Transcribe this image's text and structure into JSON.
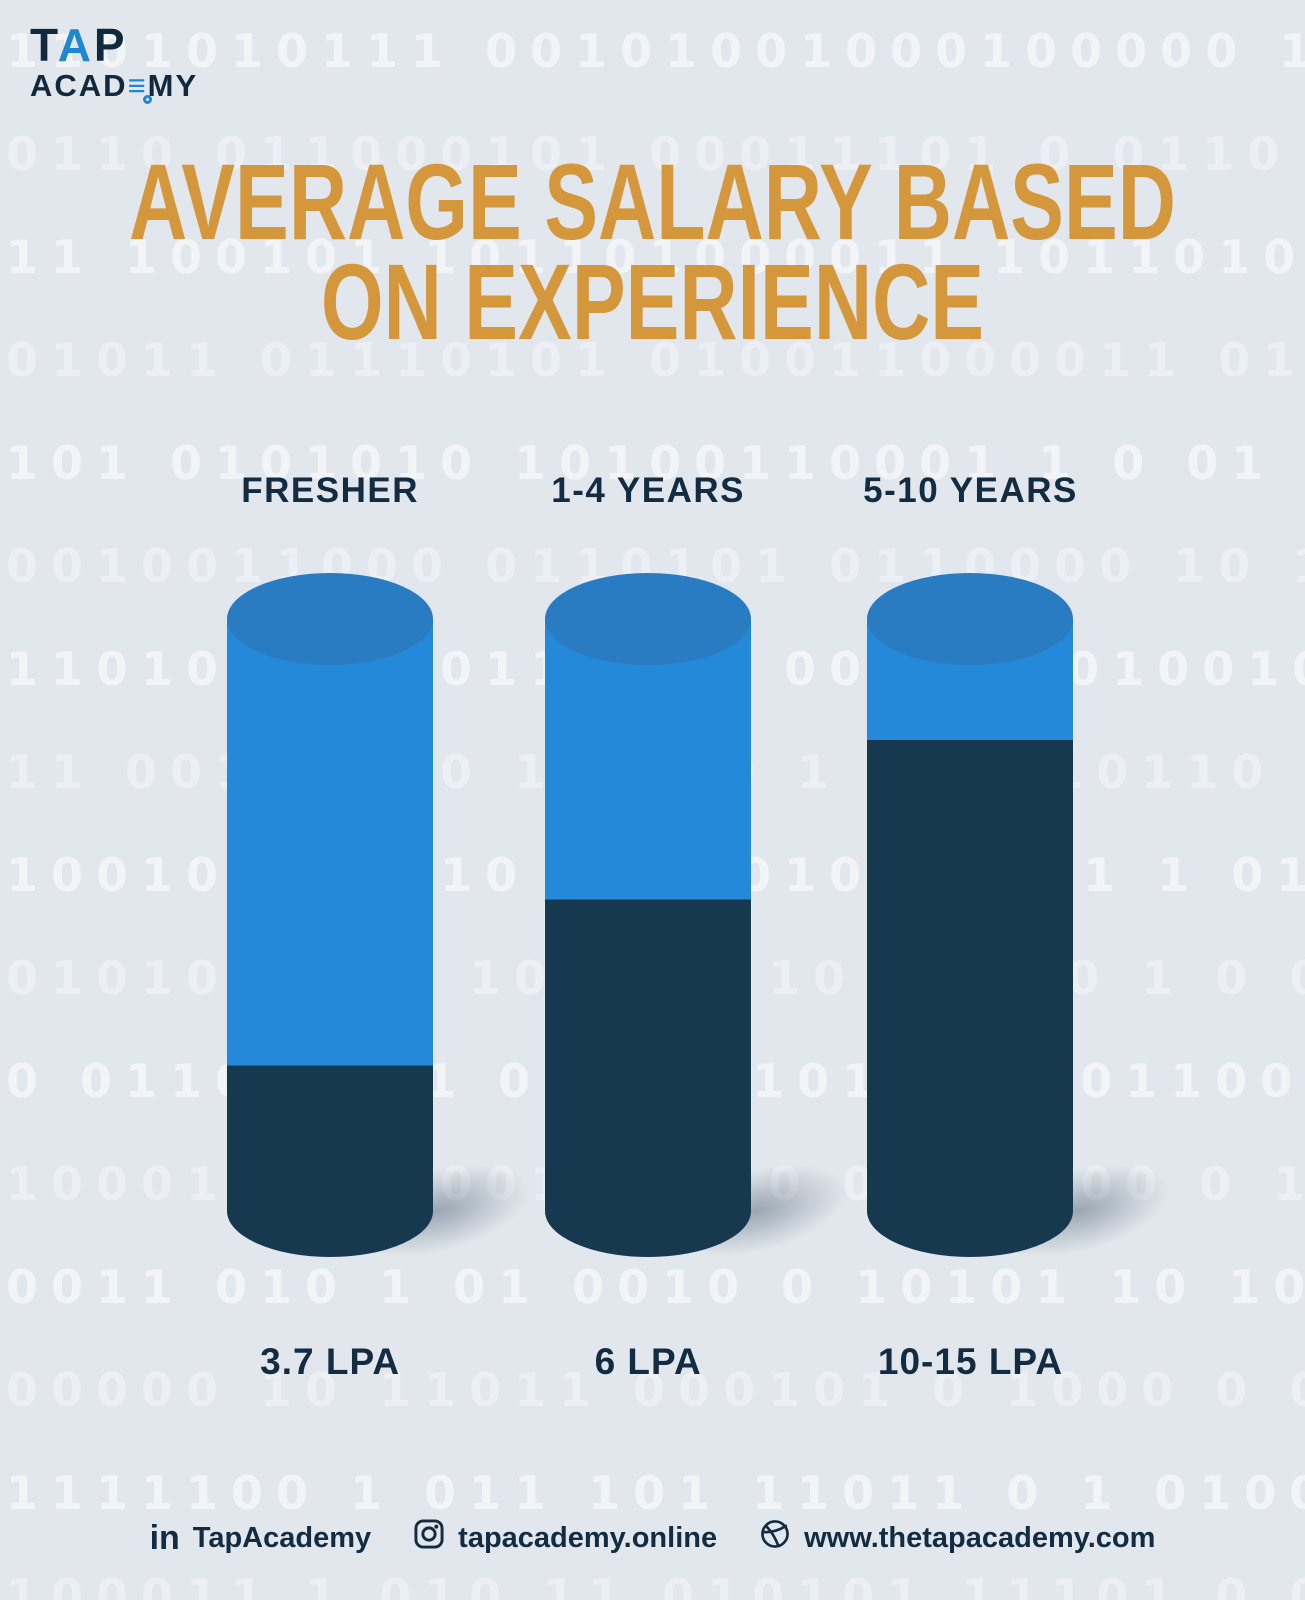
{
  "logo": {
    "tap_t": "T",
    "tap_a": "A",
    "tap_p": "P",
    "academy_pre": "ACAD",
    "academy_e": "≡",
    "academy_post": "MY"
  },
  "title": {
    "line1": "AVERAGE SALARY BASED",
    "line2": "ON EXPERIENCE"
  },
  "chart_data": {
    "type": "bar",
    "title": "Average Salary Based on Experience",
    "categories": [
      "FRESHER",
      "1-4 YEARS",
      "5-10 YEARS"
    ],
    "values": [
      3.7,
      6,
      12.5
    ],
    "value_labels": [
      "3.7 LPA",
      "6 LPA",
      "10-15 LPA"
    ],
    "unit": "LPA",
    "fill_percents_dark": [
      30,
      56,
      81
    ],
    "legend_position": "none",
    "grid": false,
    "colors": {
      "cylinder_light": "#2489d8",
      "cylinder_dark": "#16394f",
      "cylinder_top": "#2a7cc2",
      "title_orange": "#d4973c",
      "text_navy": "#132c42",
      "background": "#e2e7ed",
      "logo_blue": "#1e88d2"
    }
  },
  "footer": {
    "linkedin_label": "TapAcademy",
    "instagram_label": "tapacademy.online",
    "website_label": "www.thetapacademy.com"
  },
  "background_pattern_rows": [
    "1101010111 00101001000100000 1 00100",
    "0110 011000101 00011101 0 0110 1010111 100",
    "11 100101 101101000011 1011010001010011 0110",
    "01011 01110101 010011000011 011 1001011 0011",
    "101 0101010 10100110001 1 0 01 101 110 0111",
    "0010011000 0110101 0110000 10 1011100 1101",
    "110101101 0110011 0000 1 01001011 11 1110",
    "11 00110010 1 0000 1 010010110 0 01110",
    "1001011 1010 0011010 00101 1 011 00 0110 0",
    "01010 1100 10010 110 01010 1 0 0 101 1001",
    "0 0110 1011 00101 10110 1 01100 01 1001 10",
    "1000101 110010 01 0 0 10 000 0 1 1 00110",
    "0011 010 1 01 0010 0 10101 10 10 0 1 101",
    "00000 10 11011 000101 0 1000 0 010 110 1110",
    "1111100 1 011 101 11011 0 1 010001011 11011",
    "100011 1 010 11 010101 11101 0 01000101 0111"
  ]
}
